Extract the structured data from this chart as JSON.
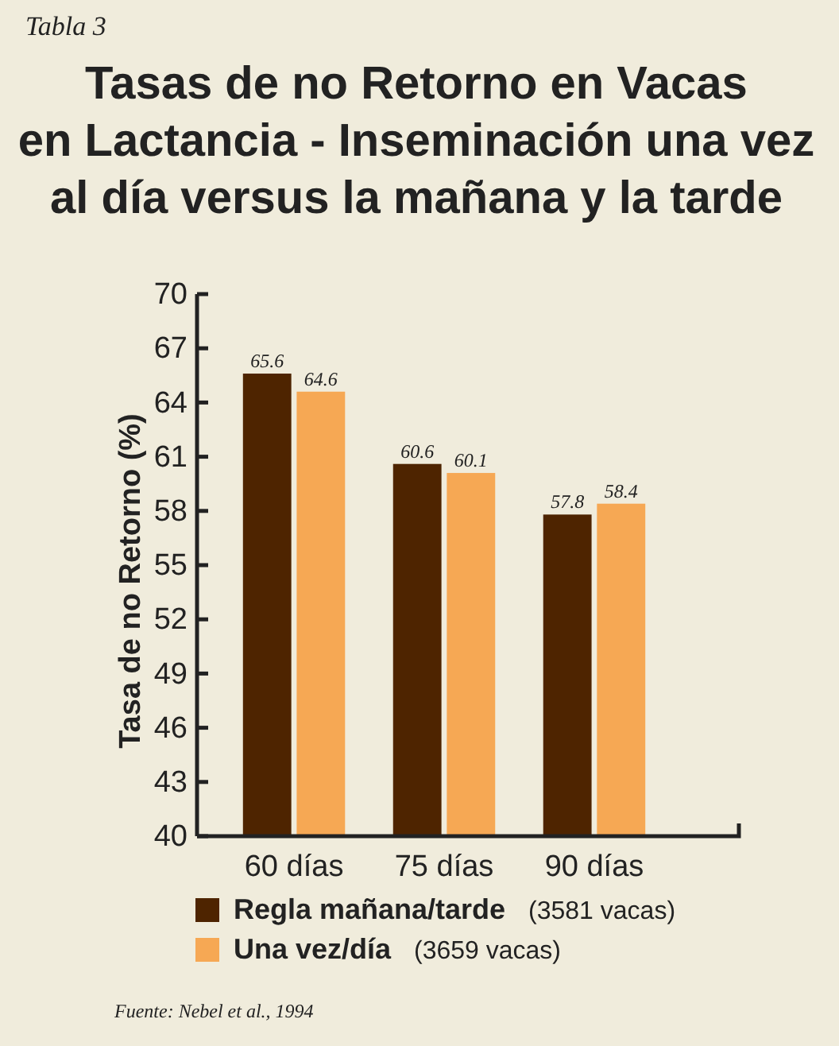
{
  "chart_data": {
    "type": "bar",
    "title": "Tasas de no Retorno en Vacas\nen Lactancia - Inseminación una vez\nal día versus la mañana y la tarde",
    "ylabel": "Tasa de no Retorno  (%)",
    "annotations": [
      "Tabla 3",
      "Fuente: Nebel et al., 1994"
    ],
    "categories": [
      "60 días",
      "75 días",
      "90 días"
    ],
    "series": [
      {
        "name": "Regla mañana/tarde  (3581 vacas)",
        "color": "#4e2400",
        "values": [
          65.6,
          60.6,
          57.8
        ]
      },
      {
        "name": "Una vez/día  (3659 vacas)",
        "color": "#f6a854",
        "values": [
          64.6,
          60.1,
          58.4
        ]
      }
    ],
    "ylim": [
      40,
      70
    ],
    "yticks": [
      40,
      43,
      46,
      49,
      52,
      55,
      58,
      61,
      64,
      67,
      70
    ],
    "data_labels": true,
    "legend": "bottom",
    "grid": false
  }
}
